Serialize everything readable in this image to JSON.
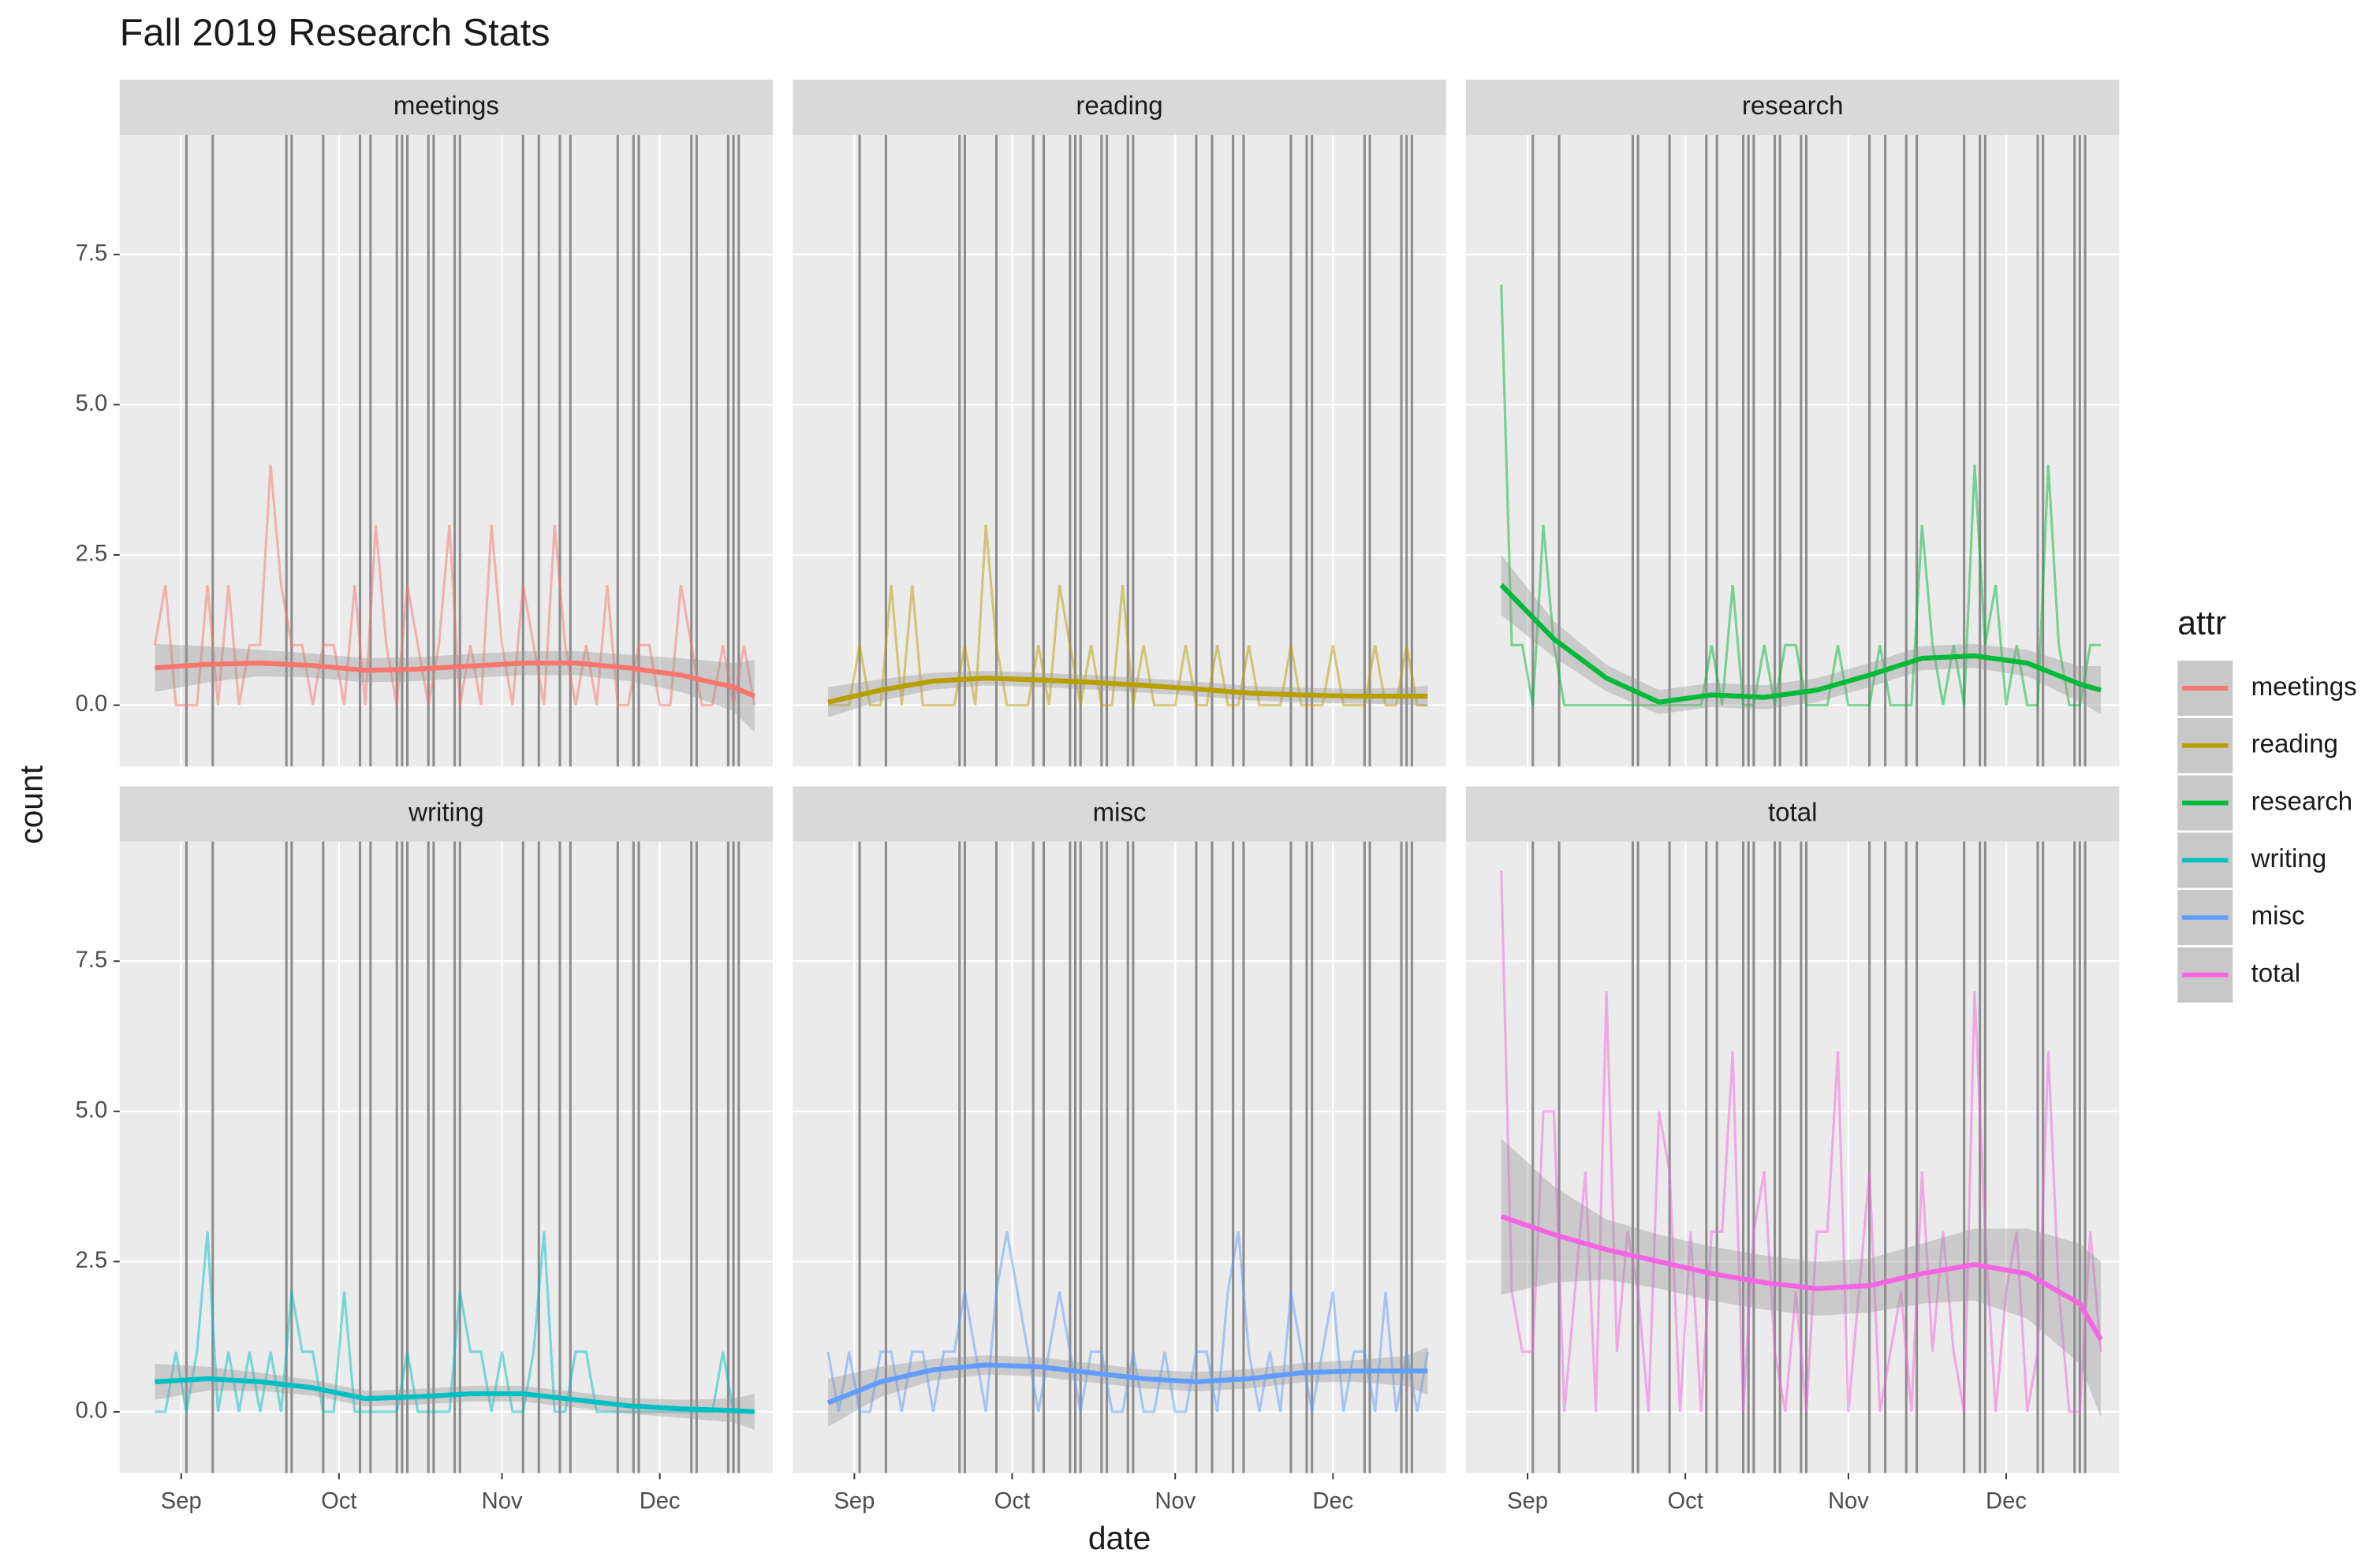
{
  "chart_data": {
    "type": "line",
    "title": "Fall 2019 Research Stats",
    "xlabel": "date",
    "ylabel": "count",
    "legend_title": "attr",
    "legend": "right",
    "grid": true,
    "xlim": [
      232.3,
      356.5
    ],
    "xticks": [
      {
        "value": 244,
        "label": "Sep"
      },
      {
        "value": 274,
        "label": "Oct"
      },
      {
        "value": 305,
        "label": "Nov"
      },
      {
        "value": 335,
        "label": "Dec"
      }
    ],
    "ylim": [
      -1.02,
      9.49
    ],
    "yticks": [
      {
        "value": 0,
        "label": "0.0"
      },
      {
        "value": 2.5,
        "label": "2.5"
      },
      {
        "value": 5,
        "label": "5.0"
      },
      {
        "value": 7.5,
        "label": "7.5"
      }
    ],
    "vlines": [
      245,
      250,
      264,
      265,
      271,
      278,
      280,
      285,
      286,
      287,
      291,
      292,
      296,
      297,
      309,
      312,
      316,
      318,
      327,
      330,
      331,
      341,
      342,
      348,
      349,
      350
    ],
    "x": [
      239,
      241,
      243,
      245,
      247,
      249,
      251,
      253,
      255,
      257,
      259,
      261,
      263,
      265,
      267,
      269,
      271,
      273,
      275,
      277,
      279,
      281,
      283,
      285,
      287,
      289,
      291,
      293,
      295,
      297,
      299,
      301,
      303,
      305,
      307,
      309,
      311,
      313,
      315,
      317,
      319,
      321,
      323,
      325,
      327,
      329,
      331,
      333,
      335,
      337,
      339,
      341,
      343,
      345,
      347,
      349,
      351,
      353
    ],
    "smooth_x": [
      239,
      249,
      259,
      269,
      279,
      289,
      299,
      309,
      319,
      329,
      339,
      349,
      353
    ],
    "series": [
      {
        "name": "meetings",
        "color": "#F8766D",
        "values": [
          1,
          2,
          0,
          0,
          0,
          2,
          0,
          2,
          0,
          1,
          1,
          4,
          2,
          1,
          1,
          0,
          1,
          1,
          0,
          2,
          0,
          3,
          1,
          0,
          2,
          1,
          0,
          1,
          3,
          0,
          1,
          0,
          3,
          1,
          0,
          2,
          1,
          0,
          3,
          1,
          0,
          1,
          0,
          2,
          0,
          0,
          1,
          1,
          0,
          0,
          2,
          1,
          0,
          0,
          1,
          0,
          1,
          0
        ],
        "smooth": [
          0.62,
          0.68,
          0.7,
          0.66,
          0.58,
          0.6,
          0.65,
          0.7,
          0.7,
          0.62,
          0.5,
          0.3,
          0.15
        ],
        "smooth_lo": [
          0.22,
          0.38,
          0.48,
          0.46,
          0.38,
          0.4,
          0.45,
          0.5,
          0.5,
          0.4,
          0.22,
          -0.1,
          -0.45
        ],
        "smooth_hi": [
          1.02,
          0.98,
          0.92,
          0.86,
          0.78,
          0.8,
          0.85,
          0.9,
          0.9,
          0.84,
          0.78,
          0.7,
          0.75
        ]
      },
      {
        "name": "reading",
        "color": "#B79F00",
        "values": [
          0,
          0,
          0,
          1,
          0,
          0,
          2,
          0,
          2,
          0,
          0,
          0,
          0,
          1,
          0,
          3,
          1,
          0,
          0,
          0,
          1,
          0,
          2,
          1,
          0,
          1,
          0,
          0,
          2,
          0,
          1,
          0,
          0,
          0,
          1,
          0,
          0,
          1,
          0,
          0,
          1,
          0,
          0,
          0,
          1,
          0,
          0,
          0,
          1,
          0,
          0,
          0,
          1,
          0,
          0,
          1,
          0,
          0
        ],
        "smooth": [
          0.05,
          0.25,
          0.4,
          0.45,
          0.42,
          0.38,
          0.33,
          0.27,
          0.2,
          0.17,
          0.15,
          0.15,
          0.15
        ],
        "smooth_lo": [
          -0.2,
          0.07,
          0.26,
          0.33,
          0.3,
          0.26,
          0.21,
          0.15,
          0.08,
          0.05,
          0.03,
          0.01,
          -0.03
        ],
        "smooth_hi": [
          0.3,
          0.43,
          0.54,
          0.57,
          0.54,
          0.5,
          0.45,
          0.39,
          0.32,
          0.29,
          0.27,
          0.29,
          0.33
        ]
      },
      {
        "name": "research",
        "color": "#00BA38",
        "values": [
          7,
          1,
          1,
          0,
          3,
          1,
          0,
          0,
          0,
          0,
          0,
          0,
          0,
          0,
          0,
          0,
          0,
          0,
          0,
          0,
          1,
          0,
          2,
          0,
          0,
          1,
          0,
          1,
          1,
          0,
          0,
          0,
          1,
          0,
          0,
          0,
          1,
          0,
          0,
          0,
          3,
          1,
          0,
          1,
          0,
          4,
          1,
          2,
          0,
          1,
          0,
          0,
          4,
          1,
          0,
          0,
          1,
          1
        ],
        "smooth": [
          2.0,
          1.1,
          0.45,
          0.05,
          0.17,
          0.13,
          0.25,
          0.5,
          0.78,
          0.82,
          0.7,
          0.35,
          0.25
        ],
        "smooth_lo": [
          1.5,
          0.8,
          0.23,
          -0.15,
          -0.03,
          -0.07,
          0.05,
          0.3,
          0.58,
          0.62,
          0.48,
          0.05,
          -0.15
        ],
        "smooth_hi": [
          2.5,
          1.4,
          0.67,
          0.25,
          0.37,
          0.33,
          0.45,
          0.7,
          0.98,
          1.02,
          0.92,
          0.65,
          0.65
        ]
      },
      {
        "name": "writing",
        "color": "#00BFC4",
        "values": [
          0,
          0,
          1,
          0,
          1,
          3,
          0,
          1,
          0,
          1,
          0,
          1,
          0,
          2,
          1,
          1,
          0,
          0,
          2,
          0,
          0,
          0,
          0,
          0,
          1,
          0,
          0,
          0,
          0,
          2,
          1,
          1,
          0,
          1,
          0,
          0,
          1,
          3,
          0,
          0,
          1,
          1,
          0,
          0,
          0,
          0,
          0,
          0,
          0,
          0,
          0,
          0,
          0,
          0,
          1,
          0,
          0,
          0
        ],
        "smooth": [
          0.5,
          0.55,
          0.5,
          0.4,
          0.22,
          0.25,
          0.3,
          0.3,
          0.2,
          0.1,
          0.05,
          0.02,
          0.0
        ],
        "smooth_lo": [
          0.2,
          0.35,
          0.35,
          0.27,
          0.09,
          0.12,
          0.17,
          0.17,
          0.07,
          -0.03,
          -0.1,
          -0.18,
          -0.3
        ],
        "smooth_hi": [
          0.8,
          0.75,
          0.65,
          0.53,
          0.35,
          0.38,
          0.43,
          0.43,
          0.33,
          0.23,
          0.2,
          0.22,
          0.3
        ]
      },
      {
        "name": "misc",
        "color": "#619CFF",
        "values": [
          1,
          0,
          1,
          0,
          0,
          1,
          1,
          0,
          1,
          1,
          0,
          1,
          1,
          2,
          1,
          0,
          2,
          3,
          2,
          1,
          0,
          1,
          2,
          1,
          0,
          1,
          1,
          0,
          0,
          1,
          0,
          0,
          1,
          0,
          0,
          1,
          1,
          0,
          2,
          3,
          1,
          0,
          1,
          0,
          2,
          1,
          0,
          1,
          2,
          0,
          1,
          1,
          0,
          2,
          0,
          1,
          0,
          1
        ],
        "smooth": [
          0.15,
          0.5,
          0.7,
          0.78,
          0.75,
          0.65,
          0.55,
          0.5,
          0.55,
          0.65,
          0.68,
          0.68,
          0.68
        ],
        "smooth_lo": [
          -0.25,
          0.25,
          0.52,
          0.62,
          0.59,
          0.49,
          0.39,
          0.34,
          0.39,
          0.49,
          0.5,
          0.43,
          0.28
        ],
        "smooth_hi": [
          0.55,
          0.75,
          0.88,
          0.94,
          0.91,
          0.81,
          0.71,
          0.66,
          0.71,
          0.81,
          0.86,
          0.93,
          1.08
        ]
      },
      {
        "name": "total",
        "color": "#F564E3",
        "values": [
          9,
          2,
          1,
          1,
          5,
          5,
          0,
          2,
          4,
          0,
          7,
          1,
          3,
          2,
          0,
          5,
          4,
          0,
          3,
          0,
          3,
          3,
          6,
          0,
          3,
          4,
          1,
          0,
          2,
          0,
          3,
          3,
          6,
          0,
          2,
          4,
          0,
          1,
          2,
          0,
          4,
          1,
          3,
          1,
          0,
          7,
          3,
          0,
          2,
          3,
          0,
          1,
          6,
          2,
          0,
          0,
          3,
          1
        ],
        "smooth": [
          3.25,
          2.95,
          2.7,
          2.5,
          2.3,
          2.15,
          2.05,
          2.1,
          2.3,
          2.45,
          2.3,
          1.8,
          1.2
        ],
        "smooth_lo": [
          1.95,
          2.15,
          2.2,
          2.05,
          1.85,
          1.7,
          1.6,
          1.65,
          1.8,
          1.85,
          1.55,
          0.8,
          -0.1
        ],
        "smooth_hi": [
          4.55,
          3.75,
          3.2,
          2.95,
          2.75,
          2.6,
          2.5,
          2.55,
          2.8,
          3.05,
          3.05,
          2.8,
          2.5
        ]
      }
    ]
  }
}
